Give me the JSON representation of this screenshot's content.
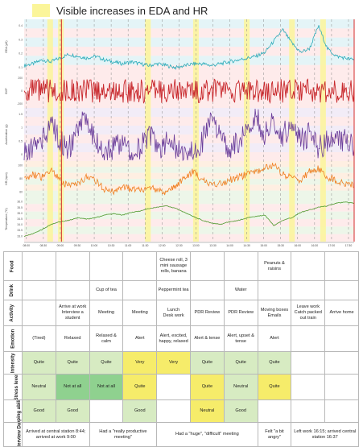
{
  "legend": {
    "label": "Visible increases in EDA and HR",
    "color": "#fbf59a"
  },
  "chart_data": {
    "type": "line",
    "x_ticks": [
      "08:00",
      "08:30",
      "09:00",
      "09:30",
      "10:00",
      "10:30",
      "11:00",
      "11:30",
      "12:00",
      "12:30",
      "13:00",
      "13:30",
      "14:00",
      "14:30",
      "15:00",
      "15:30",
      "16:00",
      "16:30",
      "17:00",
      "17:30"
    ],
    "x_range": [
      "07:56",
      "17:40"
    ],
    "highlights": [
      [
        "08:37",
        "08:47"
      ],
      [
        "08:56",
        "09:06"
      ],
      [
        "11:30",
        "11:40"
      ],
      [
        "12:55",
        "13:05"
      ],
      [
        "14:25",
        "14:35"
      ],
      [
        "15:45",
        "15:55"
      ],
      [
        "16:40",
        "16:50"
      ]
    ],
    "markers": [
      "09:02",
      "17:40"
    ],
    "series": [
      {
        "name": "EDA (µS)",
        "color": "#2aaab8",
        "band": [
          "#d9f0f4",
          "#fde3e3"
        ],
        "ticks": [
          "0.4",
          "0.3",
          "0.2",
          "0.1"
        ],
        "values": [
          0.21,
          0.22,
          0.24,
          0.23,
          0.25,
          0.27,
          0.26,
          0.25,
          0.26,
          0.24,
          0.23,
          0.22,
          0.23,
          0.22,
          0.21,
          0.22,
          0.21,
          0.2,
          0.21,
          0.22,
          0.22,
          0.21,
          0.22,
          0.23,
          0.24,
          0.25,
          0.26,
          0.28,
          0.34,
          0.4,
          0.33,
          0.28,
          0.3,
          0.42,
          0.3,
          0.26,
          0.25,
          0.24
        ]
      },
      {
        "name": "BVP",
        "color": "#c8282c",
        "band": [
          "#fde3e3",
          "#fde3e3"
        ],
        "ticks": [
          "200",
          "0",
          "-200"
        ],
        "values": [
          0,
          0,
          0,
          0,
          0,
          0,
          0,
          0,
          0,
          0,
          0,
          0,
          0,
          0,
          0,
          0,
          0,
          0,
          0,
          0,
          0,
          0,
          0,
          0,
          0,
          0,
          0,
          0,
          0,
          0,
          0,
          0,
          0,
          0,
          0,
          0,
          0,
          0
        ]
      },
      {
        "name": "Acceleration (g)",
        "color": "#6a3d9a",
        "band": [
          "#ece4f4",
          "#fde3e3"
        ],
        "ticks": [
          "1.5",
          "1",
          "0.5",
          "0"
        ],
        "values": [
          0.3,
          0.4,
          0.5,
          0.8,
          0.5,
          0.4,
          0.6,
          0.9,
          0.5,
          0.3,
          0.4,
          0.5,
          0.3,
          0.4,
          0.6,
          0.4,
          0.5,
          0.4,
          0.3,
          0.4,
          0.5,
          0.8,
          0.6,
          0.4,
          0.5,
          0.7,
          0.9,
          0.6,
          0.8,
          0.6,
          0.7,
          0.5,
          0.6,
          0.4,
          0.5,
          0.6,
          0.5,
          0.4
        ]
      },
      {
        "name": "HR (bpm)",
        "color": "#f07f22",
        "band": [
          "#fde8d6",
          "#e6f2e0"
        ],
        "ticks": [
          "100",
          "80",
          "60"
        ],
        "values": [
          78,
          82,
          80,
          85,
          78,
          74,
          76,
          80,
          78,
          72,
          70,
          74,
          72,
          71,
          73,
          72,
          70,
          74,
          80,
          84,
          78,
          74,
          76,
          78,
          80,
          82,
          84,
          86,
          88,
          82,
          80,
          78,
          84,
          86,
          80,
          78,
          76,
          74
        ]
      },
      {
        "name": "Temperature (°C)",
        "color": "#4f9a2f",
        "band": [
          "#e6f2e0",
          "#fde3e3"
        ],
        "ticks": [
          "36.0",
          "35.5",
          "35.0",
          "34.5",
          "34.0",
          "33.5",
          "33.0"
        ],
        "values": [
          33.4,
          33.6,
          33.9,
          34.3,
          34.5,
          34.6,
          34.8,
          34.7,
          34.8,
          35.0,
          35.1,
          35.0,
          35.2,
          35.3,
          35.5,
          35.6,
          35.7,
          35.5,
          35.2,
          34.9,
          34.6,
          34.4,
          34.3,
          34.5,
          34.6,
          34.8,
          34.9,
          35.0,
          34.2,
          34.6,
          34.8,
          35.2,
          35.4,
          35.6,
          35.7,
          35.9,
          36.0,
          35.9
        ]
      }
    ]
  },
  "table": {
    "rows": [
      {
        "label": "Food",
        "cells": [
          {
            "t": ""
          },
          {
            "t": ""
          },
          {
            "t": ""
          },
          {
            "t": ""
          },
          {
            "t": "Cheese roll, 3 mini sausage rolls, banana"
          },
          {
            "t": ""
          },
          {
            "t": ""
          },
          {
            "t": "Peanuts & raisins"
          },
          {
            "t": ""
          },
          {
            "t": ""
          }
        ]
      },
      {
        "label": "Drink",
        "cells": [
          {
            "t": ""
          },
          {
            "t": ""
          },
          {
            "t": "Cup of tea"
          },
          {
            "t": ""
          },
          {
            "t": "Peppermint tea"
          },
          {
            "t": ""
          },
          {
            "t": "Water"
          },
          {
            "t": ""
          },
          {
            "t": ""
          },
          {
            "t": ""
          }
        ]
      },
      {
        "label": "Activity",
        "cells": [
          {
            "t": ""
          },
          {
            "t": "Arrive at work\nInterview a student"
          },
          {
            "t": "Meeting"
          },
          {
            "t": "Meeting"
          },
          {
            "t": "Lunch\nDesk work"
          },
          {
            "t": "PDR Review"
          },
          {
            "t": "PDR Review"
          },
          {
            "t": "Moving boxes\nEmails"
          },
          {
            "t": "Leave work\nCatch packed out train"
          },
          {
            "t": "Arrive home"
          }
        ]
      },
      {
        "label": "Emotion",
        "cells": [
          {
            "t": "(Tired)"
          },
          {
            "t": "Relaxed"
          },
          {
            "t": "Relaxed & calm"
          },
          {
            "t": "Alert"
          },
          {
            "t": "Alert, excited, happy, relaxed"
          },
          {
            "t": "Alert & tense"
          },
          {
            "t": "Alert, upset & tense"
          },
          {
            "t": "Alert"
          },
          {
            "t": ""
          },
          {
            "t": ""
          }
        ]
      },
      {
        "label": "Intensity",
        "cells": [
          {
            "t": "Quite",
            "c": "c-quite"
          },
          {
            "t": "Quite",
            "c": "c-quite"
          },
          {
            "t": "Quite",
            "c": "c-quite"
          },
          {
            "t": "Very",
            "c": "c-very"
          },
          {
            "t": "Very",
            "c": "c-very"
          },
          {
            "t": "Quite",
            "c": "c-quite"
          },
          {
            "t": "Quite",
            "c": "c-quite"
          },
          {
            "t": "Quite",
            "c": "c-quite"
          },
          {
            "t": ""
          },
          {
            "t": ""
          }
        ]
      },
      {
        "label": "Stress level",
        "cells": [
          {
            "t": "Neutral",
            "c": "c-neutral"
          },
          {
            "t": "Not at all",
            "c": "c-notatall"
          },
          {
            "t": "Not at all",
            "c": "c-notatall"
          },
          {
            "t": "Quite",
            "c": "c-yquite"
          },
          {
            "t": ""
          },
          {
            "t": "Quite",
            "c": "c-yquite"
          },
          {
            "t": "Neutral",
            "c": "c-neutral"
          },
          {
            "t": "Quite",
            "c": "c-yquite"
          },
          {
            "t": ""
          },
          {
            "t": ""
          }
        ]
      },
      {
        "label": "Coping ability",
        "cells": [
          {
            "t": "Good",
            "c": "c-good"
          },
          {
            "t": "Good",
            "c": "c-good"
          },
          {
            "t": ""
          },
          {
            "t": "Good",
            "c": "c-good"
          },
          {
            "t": ""
          },
          {
            "t": "Neutral",
            "c": "c-neutralY"
          },
          {
            "t": "Good",
            "c": "c-good"
          },
          {
            "t": ""
          },
          {
            "t": ""
          },
          {
            "t": ""
          }
        ]
      }
    ],
    "interview": {
      "label": "Interview Data",
      "cells": [
        {
          "t": "Arrived at central station 8:44; arrived at work 9:00",
          "span": 2
        },
        {
          "t": "Had a \"really productive meeting\"",
          "span": 2
        },
        {
          "t": "Had a \"huge\", \"difficult\" meeting",
          "span": 3
        },
        {
          "t": "Felt \"a bit angry\"",
          "span": 1
        },
        {
          "t": "Left work 16:15; arrived central station 16:37",
          "span": 2
        }
      ]
    }
  }
}
